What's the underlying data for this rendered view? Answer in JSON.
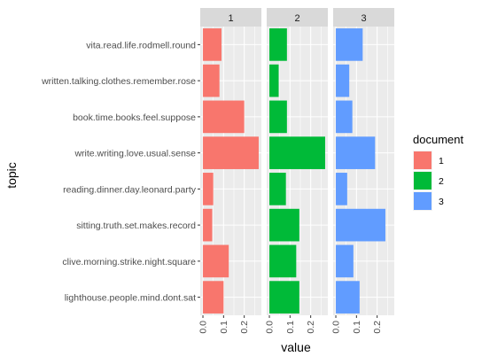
{
  "chart_data": {
    "type": "bar",
    "orientation": "horizontal",
    "facet_variable": "document",
    "facets": [
      "1",
      "2",
      "3"
    ],
    "categories": [
      "vita.read.life.rodmell.round",
      "written.talking.clothes.remember.rose",
      "book.time.books.feel.suppose",
      "write.writing.love.usual.sense",
      "reading.dinner.day.leonard.party",
      "sitting.truth.set.makes.record",
      "clive.morning.strike.night.square",
      "lighthouse.people.mind.dont.sat"
    ],
    "series": [
      {
        "name": "1",
        "color": "#F8766D",
        "values": [
          0.09,
          0.08,
          0.2,
          0.27,
          0.05,
          0.045,
          0.125,
          0.1
        ]
      },
      {
        "name": "2",
        "color": "#00BA38",
        "values": [
          0.085,
          0.045,
          0.085,
          0.27,
          0.08,
          0.145,
          0.13,
          0.145
        ]
      },
      {
        "name": "3",
        "color": "#619CFF",
        "values": [
          0.13,
          0.065,
          0.08,
          0.19,
          0.055,
          0.24,
          0.085,
          0.115
        ]
      }
    ],
    "xlabel": "value",
    "ylabel": "topic",
    "xlim": [
      -0.013,
      0.283
    ],
    "x_ticks": [
      0.0,
      0.1,
      0.2
    ],
    "x_tick_labels": [
      "0.0",
      "0.1",
      "0.2"
    ],
    "grid": true,
    "legend": {
      "title": "document",
      "position": "right",
      "entries": [
        "1",
        "2",
        "3"
      ]
    }
  }
}
